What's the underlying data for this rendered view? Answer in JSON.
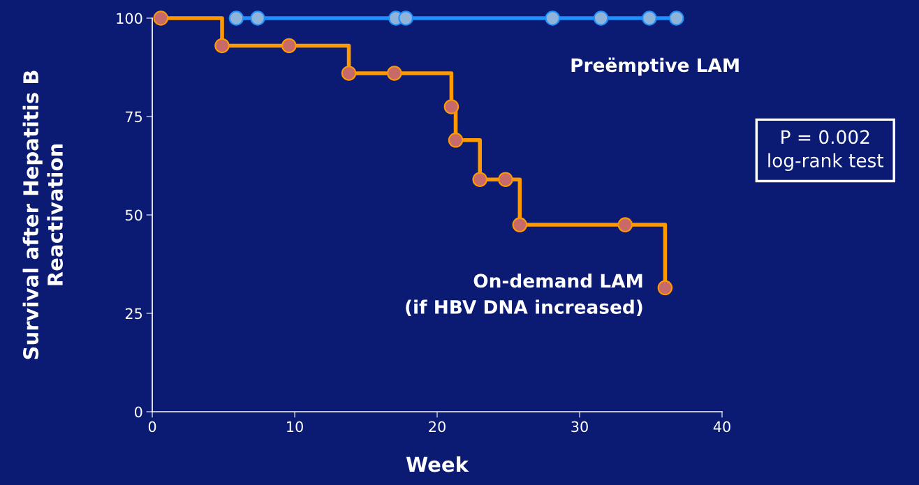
{
  "chart_data": {
    "type": "step",
    "xlabel": "Week",
    "ylabel": "Survival after Hepatitis B\nReactivation",
    "xlim": [
      0,
      40
    ],
    "ylim": [
      0,
      100
    ],
    "xticks": [
      0,
      10,
      20,
      30,
      40
    ],
    "yticks": [
      0,
      25,
      50,
      75,
      100
    ],
    "grid": false,
    "marker": "circle",
    "line_style": "solid",
    "series": [
      {
        "name": "Preëmptive LAM",
        "color": "#1e90ff",
        "x": [
          5.9,
          7.4,
          17.1,
          17.8,
          28.1,
          31.5,
          34.9,
          36.8
        ],
        "values": [
          100,
          100,
          100,
          100,
          100,
          100,
          100,
          100
        ]
      },
      {
        "name": "On-demand LAM\n(if HBV DNA increased)",
        "color": "#ff9900",
        "x": [
          0.6,
          4.9,
          9.6,
          13.8,
          17.0,
          21.0,
          21.3,
          23.0,
          24.8,
          25.8,
          33.2,
          36.0
        ],
        "values": [
          100,
          93,
          93,
          86,
          86,
          77.5,
          69,
          59,
          59,
          47.5,
          47.5,
          31.5
        ]
      }
    ],
    "annotations": [
      "P = 0.002\nlog-rank test"
    ]
  }
}
